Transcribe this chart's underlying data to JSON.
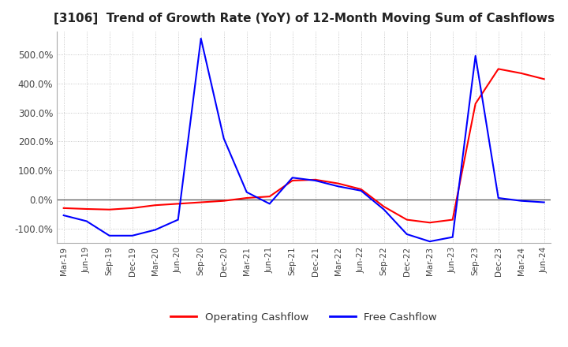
{
  "title": "[3106]  Trend of Growth Rate (YoY) of 12-Month Moving Sum of Cashflows",
  "title_fontsize": 11,
  "ylim": [
    -150,
    580
  ],
  "yticks": [
    -100,
    0,
    100,
    200,
    300,
    400,
    500
  ],
  "ytick_labels": [
    "-100.0%",
    "0.0%",
    "100.0%",
    "200.0%",
    "300.0%",
    "400.0%",
    "500.0%"
  ],
  "background_color": "#ffffff",
  "grid_color": "#bbbbbb",
  "legend_entries": [
    "Operating Cashflow",
    "Free Cashflow"
  ],
  "legend_colors": [
    "#ff0000",
    "#0000ff"
  ],
  "dates": [
    "Mar-19",
    "Jun-19",
    "Sep-19",
    "Dec-19",
    "Mar-20",
    "Jun-20",
    "Sep-20",
    "Dec-20",
    "Mar-21",
    "Jun-21",
    "Sep-21",
    "Dec-21",
    "Mar-22",
    "Jun-22",
    "Sep-22",
    "Dec-22",
    "Mar-23",
    "Jun-23",
    "Sep-23",
    "Dec-23",
    "Mar-24",
    "Jun-24"
  ],
  "operating_cashflow": [
    -30,
    -33,
    -35,
    -30,
    -20,
    -15,
    -10,
    -5,
    5,
    10,
    65,
    68,
    55,
    35,
    -25,
    -70,
    -80,
    -70,
    330,
    450,
    435,
    415
  ],
  "free_cashflow": [
    -55,
    -75,
    -125,
    -125,
    -105,
    -70,
    555,
    210,
    25,
    -15,
    75,
    65,
    45,
    30,
    -35,
    -120,
    -145,
    -130,
    495,
    5,
    -5,
    -10
  ]
}
